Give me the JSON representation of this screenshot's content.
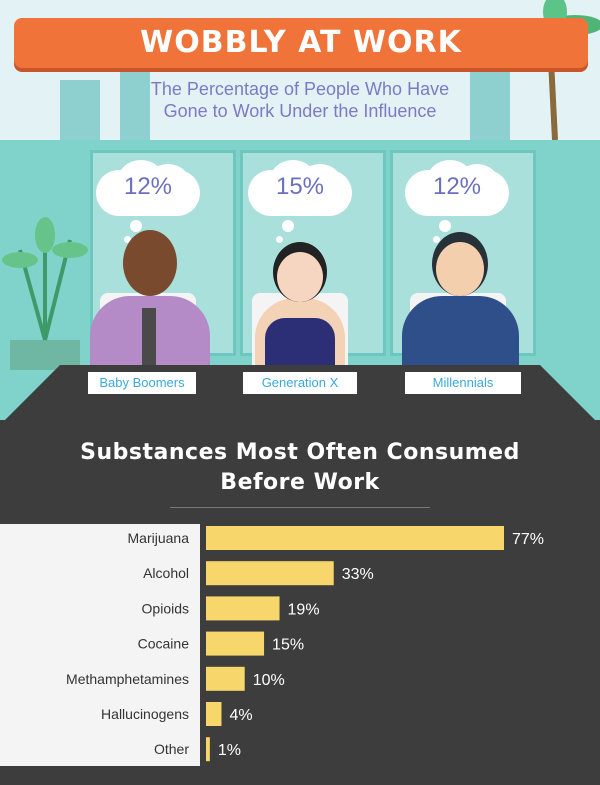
{
  "header": {
    "title": "WOBBLY AT WORK",
    "subtitle_line1": "The Percentage of People Who Have",
    "subtitle_line2": "Gone to Work Under the Influence"
  },
  "generations": [
    {
      "label": "Baby Boomers",
      "percent": "12%"
    },
    {
      "label": "Generation X",
      "percent": "15%"
    },
    {
      "label": "Millennials",
      "percent": "12%"
    }
  ],
  "colors": {
    "banner": "#f0743a",
    "bar": "#f7d66b",
    "background": "#3d3d3d",
    "label_panel": "#f4f4f4"
  },
  "chart_data": {
    "type": "bar",
    "orientation": "horizontal",
    "title_line1": "Substances Most Often Consumed",
    "title_line2": "Before Work",
    "categories": [
      "Marijuana",
      "Alcohol",
      "Opioids",
      "Cocaine",
      "Methamphetamines",
      "Hallucinogens",
      "Other"
    ],
    "values": [
      77,
      33,
      19,
      15,
      10,
      4,
      1
    ],
    "value_labels": [
      "77%",
      "33%",
      "19%",
      "15%",
      "10%",
      "4%",
      "1%"
    ],
    "xlim": [
      0,
      77
    ],
    "grid": false
  }
}
